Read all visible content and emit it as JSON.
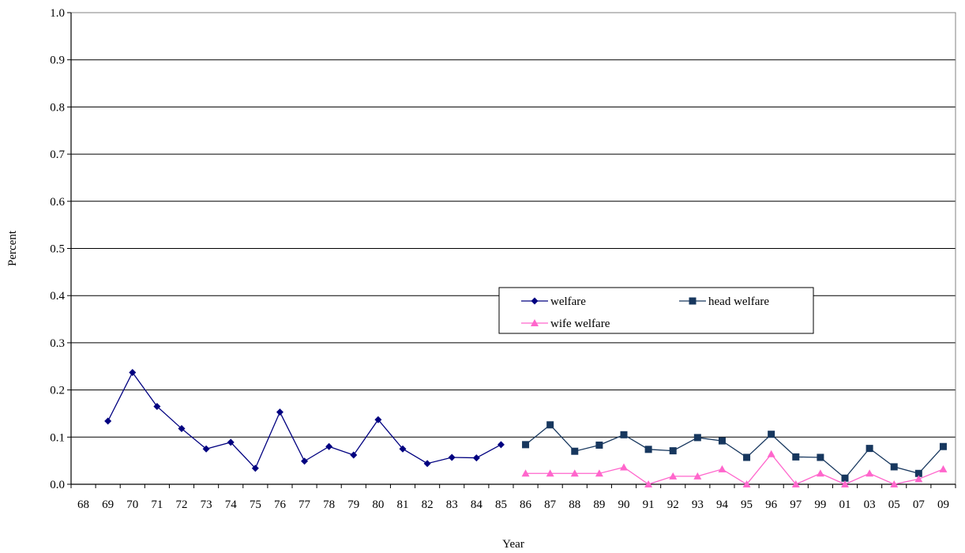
{
  "chart_data": {
    "type": "line",
    "title": "",
    "xlabel": "Year",
    "ylabel": "Percent",
    "ylim": [
      0.0,
      1.0
    ],
    "yticks": [
      "0.0",
      "0.1",
      "0.2",
      "0.3",
      "0.4",
      "0.5",
      "0.6",
      "0.7",
      "0.8",
      "0.9",
      "1.0"
    ],
    "grid": "horizontal",
    "legend_position": "center-right",
    "categories": [
      "68",
      "69",
      "70",
      "71",
      "72",
      "73",
      "74",
      "75",
      "76",
      "77",
      "78",
      "79",
      "80",
      "81",
      "82",
      "83",
      "84",
      "85",
      "86",
      "87",
      "88",
      "89",
      "90",
      "91",
      "92",
      "93",
      "94",
      "95",
      "96",
      "97",
      "99",
      "01",
      "03",
      "05",
      "07",
      "09"
    ],
    "series": [
      {
        "name": "welfare",
        "color": "#000080",
        "marker": "diamond",
        "values": [
          null,
          0.134,
          0.237,
          0.165,
          0.118,
          0.075,
          0.089,
          0.034,
          0.153,
          0.049,
          0.08,
          0.062,
          0.137,
          0.075,
          0.044,
          0.057,
          0.056,
          0.084,
          null,
          null,
          null,
          null,
          null,
          null,
          null,
          null,
          null,
          null,
          null,
          null,
          null,
          null,
          null,
          null,
          null,
          null
        ]
      },
      {
        "name": "head welfare",
        "color": "#17375E",
        "marker": "square",
        "values": [
          null,
          null,
          null,
          null,
          null,
          null,
          null,
          null,
          null,
          null,
          null,
          null,
          null,
          null,
          null,
          null,
          null,
          null,
          0.084,
          0.126,
          0.07,
          0.083,
          0.105,
          0.074,
          0.071,
          0.099,
          0.092,
          0.057,
          0.106,
          0.058,
          0.057,
          0.013,
          0.076,
          0.037,
          0.023,
          0.08
        ]
      },
      {
        "name": "wife welfare",
        "color": "#FF66CC",
        "marker": "triangle",
        "values": [
          null,
          null,
          null,
          null,
          null,
          null,
          null,
          null,
          null,
          null,
          null,
          null,
          null,
          null,
          null,
          null,
          null,
          null,
          0.023,
          0.023,
          0.023,
          0.023,
          0.036,
          0.0,
          0.017,
          0.017,
          0.032,
          0.0,
          0.064,
          0.0,
          0.023,
          0.0,
          0.023,
          0.0,
          0.011,
          0.032
        ]
      }
    ]
  }
}
